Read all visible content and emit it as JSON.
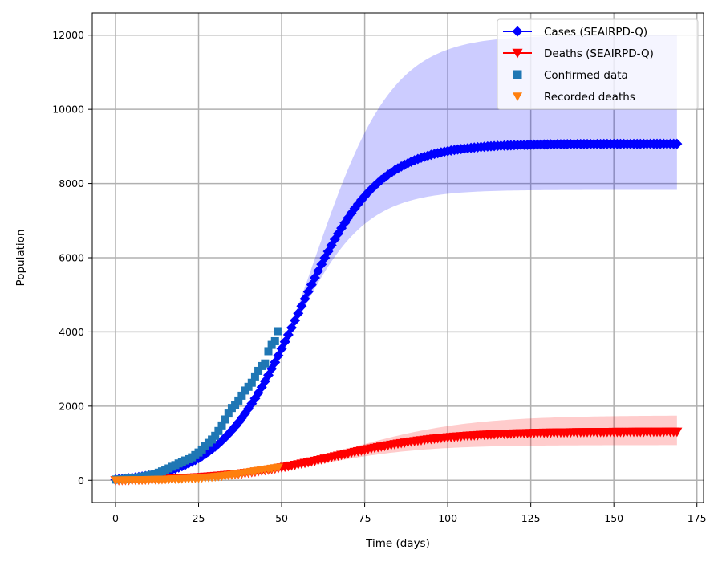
{
  "chart_data": {
    "type": "line",
    "title": "",
    "xlabel": "Time (days)",
    "ylabel": "Population",
    "xlim": [
      -7,
      177
    ],
    "ylim": [
      -600,
      12600
    ],
    "xticks": [
      0,
      25,
      50,
      75,
      100,
      125,
      150,
      175
    ],
    "yticks": [
      0,
      2000,
      4000,
      6000,
      8000,
      10000,
      12000
    ],
    "grid": true,
    "legend_position": "top-right",
    "series": [
      {
        "name": "Cases (SEAIRPD-Q)",
        "kind": "line-marker",
        "marker": "diamond",
        "color": "#0000ff",
        "x_start": 0,
        "x_end": 169,
        "x_step": 1,
        "curve": "logistic",
        "initial": 20,
        "final": 9070,
        "midpoint": 55,
        "rate": 0.085
      },
      {
        "name": "Deaths (SEAIRPD-Q)",
        "kind": "line-marker",
        "marker": "triangle-down",
        "color": "#ff0000",
        "x_start": 0,
        "x_end": 169,
        "x_step": 1,
        "curve": "logistic",
        "initial": 0,
        "final": 1310,
        "midpoint": 66,
        "rate": 0.06
      },
      {
        "name": "Confirmed data",
        "kind": "scatter",
        "marker": "square",
        "color": "#1f77b4",
        "x": [
          0,
          1,
          2,
          3,
          4,
          5,
          6,
          7,
          8,
          9,
          10,
          11,
          12,
          13,
          14,
          15,
          16,
          17,
          18,
          19,
          20,
          21,
          22,
          23,
          24,
          25,
          26,
          27,
          28,
          29,
          30,
          31,
          32,
          33,
          34,
          35,
          36,
          37,
          38,
          39,
          40,
          41,
          42,
          43,
          44,
          45,
          46,
          47,
          48,
          49
        ],
        "y": [
          20,
          25,
          30,
          40,
          50,
          60,
          70,
          80,
          95,
          110,
          130,
          150,
          175,
          205,
          240,
          280,
          320,
          365,
          410,
          455,
          500,
          535,
          570,
          620,
          680,
          750,
          830,
          920,
          1010,
          1100,
          1200,
          1330,
          1480,
          1640,
          1800,
          1950,
          2020,
          2150,
          2280,
          2420,
          2520,
          2630,
          2800,
          2950,
          3080,
          3150,
          3480,
          3650,
          3750,
          4020
        ]
      },
      {
        "name": "Recorded deaths",
        "kind": "scatter",
        "marker": "triangle-down",
        "color": "#ff7f0e",
        "x": [
          0,
          1,
          2,
          3,
          4,
          5,
          6,
          7,
          8,
          9,
          10,
          11,
          12,
          13,
          14,
          15,
          16,
          17,
          18,
          19,
          20,
          21,
          22,
          23,
          24,
          25,
          26,
          27,
          28,
          29,
          30,
          31,
          32,
          33,
          34,
          35,
          36,
          37,
          38,
          39,
          40,
          41,
          42,
          43,
          44,
          45,
          46,
          47,
          48,
          49
        ],
        "y": [
          0,
          1,
          2,
          3,
          4,
          5,
          6,
          7,
          8,
          10,
          12,
          14,
          16,
          18,
          20,
          22,
          25,
          28,
          31,
          34,
          37,
          40,
          44,
          48,
          53,
          58,
          64,
          70,
          77,
          85,
          93,
          102,
          112,
          123,
          135,
          147,
          160,
          174,
          188,
          200,
          215,
          230,
          245,
          260,
          275,
          290,
          300,
          315,
          330,
          345
        ]
      }
    ],
    "bands": [
      {
        "name": "Cases confidence band",
        "color": "#0000ff",
        "opacity": 0.2,
        "x_start": 0,
        "x_end": 169,
        "x_step": 1,
        "lower": {
          "curve": "logistic",
          "initial": 20,
          "final": 7830,
          "midpoint": 52.5,
          "rate": 0.09
        },
        "upper": {
          "curve": "logistic",
          "initial": 20,
          "final": 12000,
          "midpoint": 60,
          "rate": 0.085
        }
      },
      {
        "name": "Deaths confidence band",
        "color": "#ff0000",
        "opacity": 0.2,
        "x_start": 0,
        "x_end": 169,
        "x_step": 1,
        "lower": {
          "curve": "logistic",
          "initial": 0,
          "final": 950,
          "midpoint": 63,
          "rate": 0.065
        },
        "upper": {
          "curve": "logistic",
          "initial": 0,
          "final": 1750,
          "midpoint": 70,
          "rate": 0.055
        }
      }
    ]
  }
}
